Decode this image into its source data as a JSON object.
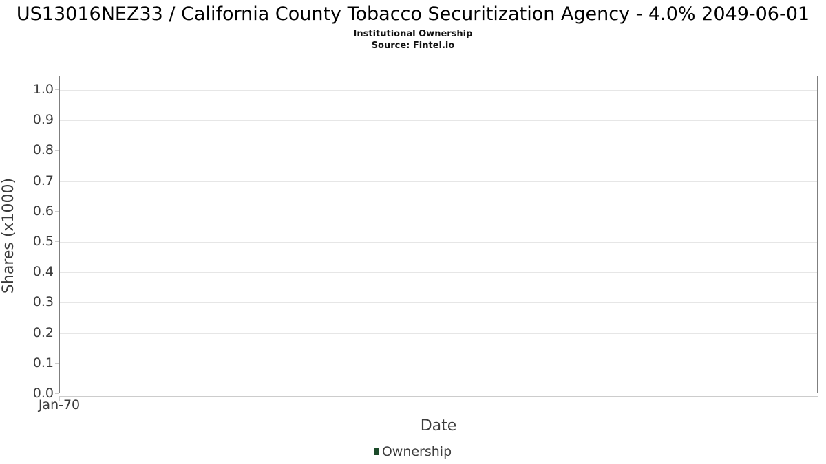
{
  "colors": {
    "background": "#ffffff",
    "title_text": "#000000",
    "axis_text": "#3c3c3c",
    "plot_border": "#7f7f7f",
    "gridline": "#e6e6e6",
    "tick": "#cccccc",
    "legend_marker": "#1c4b2a"
  },
  "chart_data": {
    "type": "bar",
    "title": "US13016NEZ33 / California County Tobacco Securitization Agency - 4.0% 2049-06-01",
    "subtitle": "Institutional Ownership",
    "source": "Source: Fintel.io",
    "xlabel": "Date",
    "ylabel": "Shares (x1000)",
    "ylim": [
      0,
      1.045
    ],
    "yticks": [
      0.0,
      0.1,
      0.2,
      0.3,
      0.4,
      0.5,
      0.6,
      0.7,
      0.8,
      0.9,
      1.0
    ],
    "ytick_labels": [
      "0.0",
      "0.1",
      "0.2",
      "0.3",
      "0.4",
      "0.5",
      "0.6",
      "0.7",
      "0.8",
      "0.9",
      "1.0"
    ],
    "xtick_labels": [
      "Jan-70"
    ],
    "grid": "horizontal",
    "legend_position": "bottom",
    "series": [
      {
        "name": "Ownership",
        "color": "#1c4b2a",
        "x": [],
        "values": []
      }
    ]
  }
}
